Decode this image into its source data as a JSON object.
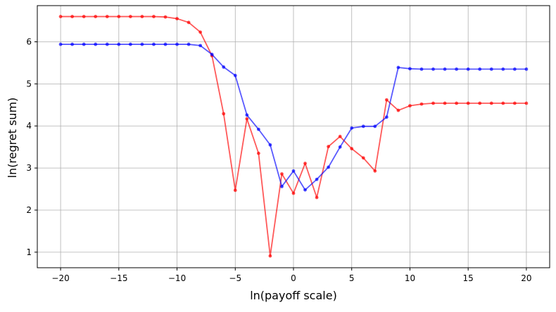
{
  "chart_data": {
    "type": "line",
    "title": "",
    "xlabel": "ln(payoff scale)",
    "ylabel": "ln(regret sum)",
    "xlim": [
      -22,
      22
    ],
    "ylim": [
      0.63,
      6.86
    ],
    "xticks": [
      -20,
      -15,
      -10,
      -5,
      0,
      5,
      10,
      15,
      20
    ],
    "yticks": [
      1,
      2,
      3,
      4,
      5,
      6
    ],
    "xtick_labels": [
      "−20",
      "−15",
      "−10",
      "−5",
      "0",
      "5",
      "10",
      "15",
      "20"
    ],
    "ytick_labels": [
      "1",
      "2",
      "3",
      "4",
      "5",
      "6"
    ],
    "grid": true,
    "legend": "none",
    "x": [
      -20,
      -19,
      -18,
      -17,
      -16,
      -15,
      -14,
      -13,
      -12,
      -11,
      -10,
      -9,
      -8,
      -7,
      -6,
      -5,
      -4,
      -3,
      -2,
      -1,
      0,
      1,
      2,
      3,
      4,
      5,
      6,
      7,
      8,
      9,
      10,
      11,
      12,
      13,
      14,
      15,
      16,
      17,
      18,
      19,
      20
    ],
    "series": [
      {
        "color": "#ff0000",
        "values": [
          6.6,
          6.6,
          6.6,
          6.6,
          6.6,
          6.6,
          6.6,
          6.6,
          6.6,
          6.59,
          6.55,
          6.46,
          6.23,
          5.67,
          4.29,
          2.47,
          4.17,
          3.35,
          0.91,
          2.86,
          2.4,
          3.11,
          2.3,
          3.51,
          3.75,
          3.46,
          3.24,
          2.93,
          4.62,
          4.37,
          4.48,
          4.52,
          4.54,
          4.54,
          4.54,
          4.54,
          4.54,
          4.54,
          4.54,
          4.54,
          4.54
        ]
      },
      {
        "color": "#0000ff",
        "values": [
          5.94,
          5.94,
          5.94,
          5.94,
          5.94,
          5.94,
          5.94,
          5.94,
          5.94,
          5.94,
          5.94,
          5.94,
          5.91,
          5.7,
          5.4,
          5.2,
          4.26,
          3.92,
          3.55,
          2.56,
          2.93,
          2.48,
          2.73,
          3.02,
          3.5,
          3.95,
          3.99,
          3.99,
          4.21,
          5.39,
          5.36,
          5.35,
          5.35,
          5.35,
          5.35,
          5.35,
          5.35,
          5.35,
          5.35,
          5.35,
          5.35
        ]
      }
    ]
  }
}
